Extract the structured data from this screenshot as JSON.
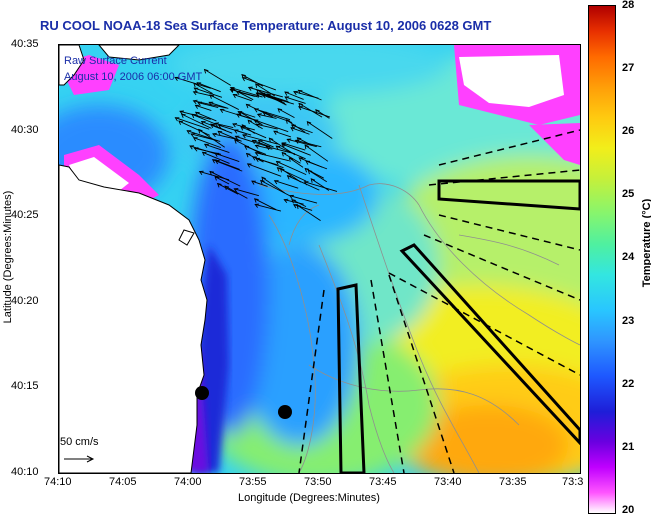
{
  "title": "RU COOL  NOAA-18  Sea Surface Temperature:  August 10, 2006 0628 GMT",
  "current_label": {
    "line1": "Raw Surface Current",
    "line2": "August 10, 2006 06:00 GMT"
  },
  "scale_label": "50 cm/s",
  "axes": {
    "xlabel": "Longitude (Degrees:Minutes)",
    "ylabel": "Latitude (Degrees:Minutes)",
    "xticks": [
      "74:10",
      "74:05",
      "74:00",
      "73:55",
      "73:50",
      "73:45",
      "73:40",
      "73:35",
      "73:3"
    ],
    "yticks": [
      "40:35",
      "40:30",
      "40:25",
      "40:20",
      "40:15",
      "40:10"
    ]
  },
  "colorbar": {
    "label": "Temperature (°C)",
    "ticks": [
      "28",
      "27",
      "26",
      "25",
      "24",
      "23",
      "22",
      "21",
      "20"
    ],
    "min": 20,
    "max": 28
  },
  "colors": {
    "title": "#1a2ea8",
    "land": "#ffffff",
    "cloud_mask": "#ff40ff"
  }
}
